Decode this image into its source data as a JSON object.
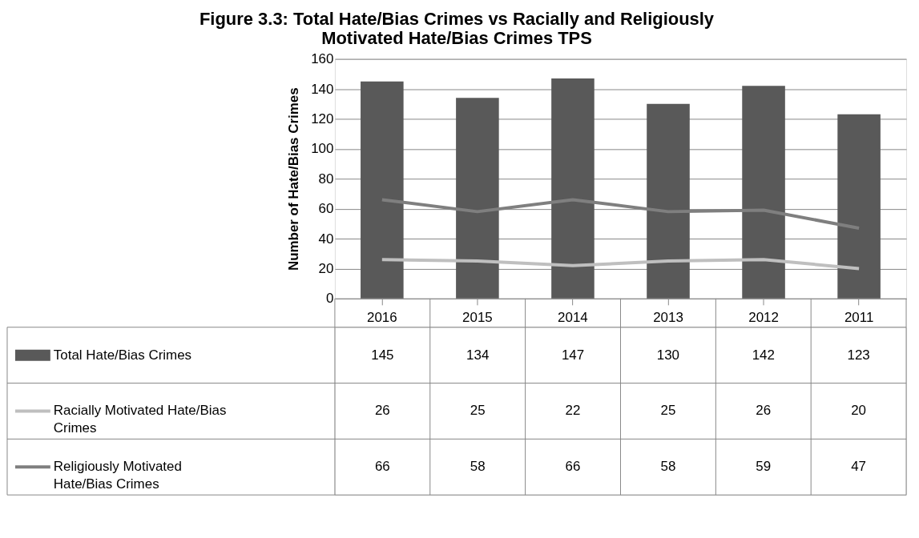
{
  "chart_data": {
    "type": "bar",
    "title": "Figure 3.3: Total Hate/Bias Crimes vs Racially and Religiously Motivated Hate/Bias Crimes TPS",
    "ylabel": "Number of Hate/Bias Crimes",
    "categories": [
      "2016",
      "2015",
      "2014",
      "2013",
      "2012",
      "2011"
    ],
    "series": [
      {
        "name": "Total Hate/Bias Crimes",
        "color": "#595959",
        "values": [
          145,
          134,
          147,
          130,
          142,
          123
        ]
      },
      {
        "name": "Racially Motivated Hate/Bias Crimes",
        "type": "line",
        "color": "#bfbfbf",
        "values": [
          26,
          25,
          22,
          25,
          26,
          20
        ]
      },
      {
        "name": "Religiously Motivated Hate/Bias Crimes",
        "type": "line",
        "color": "#7f7f7f",
        "values": [
          66,
          58,
          66,
          58,
          59,
          47
        ]
      }
    ],
    "ylim": [
      0,
      160
    ],
    "yticks": [
      0,
      20,
      40,
      60,
      80,
      100,
      120,
      140,
      160
    ],
    "grid": "y",
    "legend": "bottom left",
    "data_labels": true
  }
}
